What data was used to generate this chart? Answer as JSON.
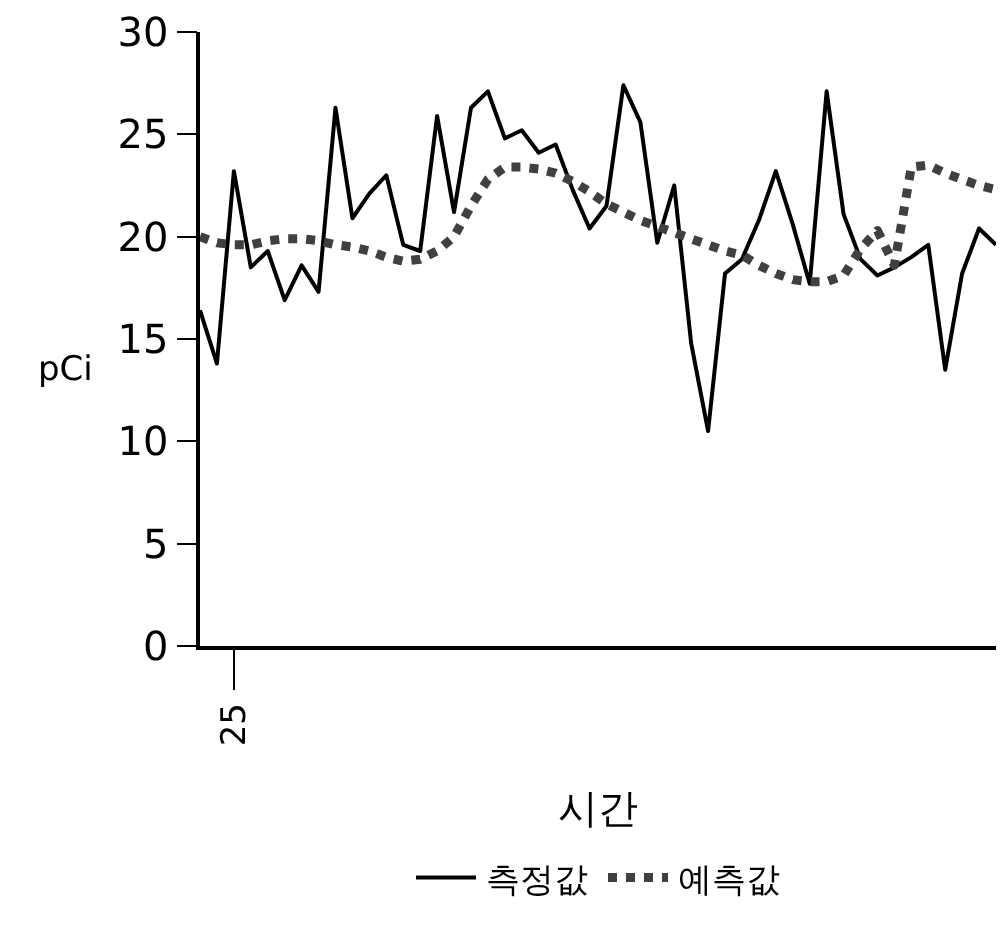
{
  "chart_data": {
    "type": "line",
    "xlabel": "시간",
    "ylabel": "pCi",
    "categories": [
      null,
      null,
      "25",
      null,
      null,
      null,
      null,
      null,
      null,
      null,
      null,
      null,
      null,
      null,
      null,
      null,
      null,
      null,
      null,
      null,
      null,
      null,
      null,
      null,
      null,
      null,
      null,
      null,
      null,
      null,
      null,
      null,
      null,
      null,
      null,
      null,
      null,
      null,
      null,
      null,
      null,
      null,
      null,
      null,
      null,
      null,
      null,
      null
    ],
    "ylim": [
      0,
      30
    ],
    "yticks": [
      0,
      5,
      10,
      15,
      20,
      25,
      30
    ],
    "legend": "bottom",
    "series": [
      {
        "name": "측정값",
        "color": "#000000",
        "line_style": "solid",
        "values": [
          16.4,
          13.8,
          23.2,
          18.5,
          19.3,
          16.9,
          18.6,
          17.3,
          26.3,
          20.9,
          22.1,
          23.0,
          19.6,
          19.3,
          25.9,
          21.2,
          26.3,
          27.1,
          24.8,
          25.2,
          24.1,
          24.5,
          22.3,
          20.4,
          21.5,
          27.4,
          25.6,
          19.7,
          22.5,
          14.8,
          10.5,
          18.2,
          18.9,
          20.8,
          23.2,
          20.6,
          17.7,
          27.1,
          21.1,
          18.9,
          18.1,
          18.5,
          19.0,
          19.6,
          13.5,
          18.2,
          20.4,
          19.6
        ]
      },
      {
        "name": "예측값",
        "color": "#404040",
        "line_style": "dotted",
        "values": [
          20.0,
          19.7,
          19.6,
          19.6,
          19.8,
          19.9,
          19.9,
          19.8,
          19.6,
          19.5,
          19.3,
          19.0,
          18.8,
          18.9,
          19.3,
          20.0,
          21.5,
          22.8,
          23.4,
          23.4,
          23.3,
          23.1,
          22.7,
          22.2,
          21.6,
          21.2,
          20.8,
          20.5,
          20.2,
          19.9,
          19.6,
          19.3,
          19.1,
          18.6,
          18.2,
          17.9,
          17.8,
          17.8,
          18.1,
          19.4,
          20.3,
          18.6,
          23.4,
          23.5,
          23.1,
          22.8,
          22.5,
          22.3
        ]
      }
    ]
  }
}
